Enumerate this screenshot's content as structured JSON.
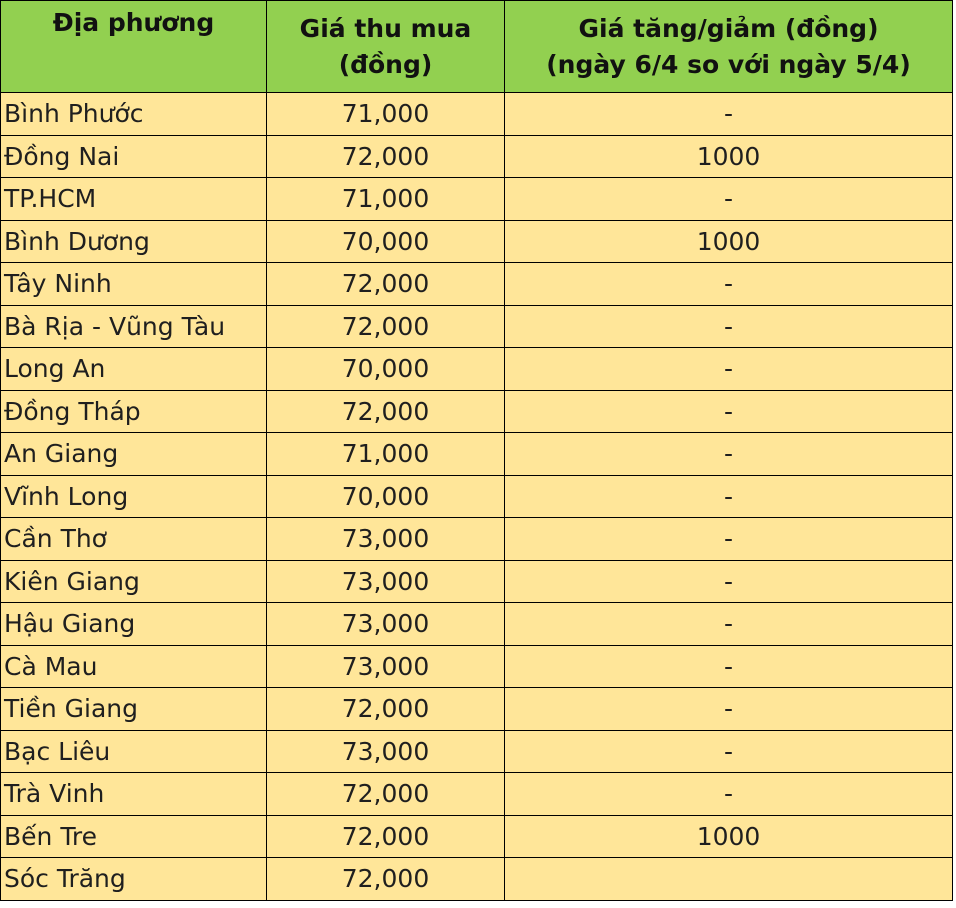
{
  "headers": {
    "location": "Địa phương",
    "price_line1": "Giá thu mua",
    "price_line2": "(đồng)",
    "change_line1": "Giá tăng/giảm (đồng)",
    "change_line2": "(ngày 6/4 so với ngày 5/4)"
  },
  "rows": [
    {
      "location": "Bình Phước",
      "price": "71,000",
      "change": "-"
    },
    {
      "location": "Đồng Nai",
      "price": "72,000",
      "change": "1000"
    },
    {
      "location": "TP.HCM",
      "price": "71,000",
      "change": "-"
    },
    {
      "location": "Bình Dương",
      "price": "70,000",
      "change": "1000"
    },
    {
      "location": "Tây Ninh",
      "price": "72,000",
      "change": "-"
    },
    {
      "location": "Bà Rịa - Vũng Tàu",
      "price": "72,000",
      "change": "-"
    },
    {
      "location": "Long An",
      "price": "70,000",
      "change": "-"
    },
    {
      "location": "Đồng Tháp",
      "price": "72,000",
      "change": "-"
    },
    {
      "location": "An Giang",
      "price": "71,000",
      "change": "-"
    },
    {
      "location": "Vĩnh Long",
      "price": "70,000",
      "change": "-"
    },
    {
      "location": "Cần Thơ",
      "price": "73,000",
      "change": "-"
    },
    {
      "location": "Kiên Giang",
      "price": "73,000",
      "change": "-"
    },
    {
      "location": "Hậu Giang",
      "price": "73,000",
      "change": "-"
    },
    {
      "location": "Cà Mau",
      "price": "73,000",
      "change": "-"
    },
    {
      "location": "Tiền Giang",
      "price": "72,000",
      "change": "-"
    },
    {
      "location": "Bạc Liêu",
      "price": "73,000",
      "change": "-"
    },
    {
      "location": "Trà Vinh",
      "price": "72,000",
      "change": "-"
    },
    {
      "location": "Bến Tre",
      "price": "72,000",
      "change": "1000"
    },
    {
      "location": "Sóc Trăng",
      "price": "72,000",
      "change": ""
    }
  ],
  "colors": {
    "header_bg": "#92d050",
    "row_bg": "#ffe699"
  }
}
